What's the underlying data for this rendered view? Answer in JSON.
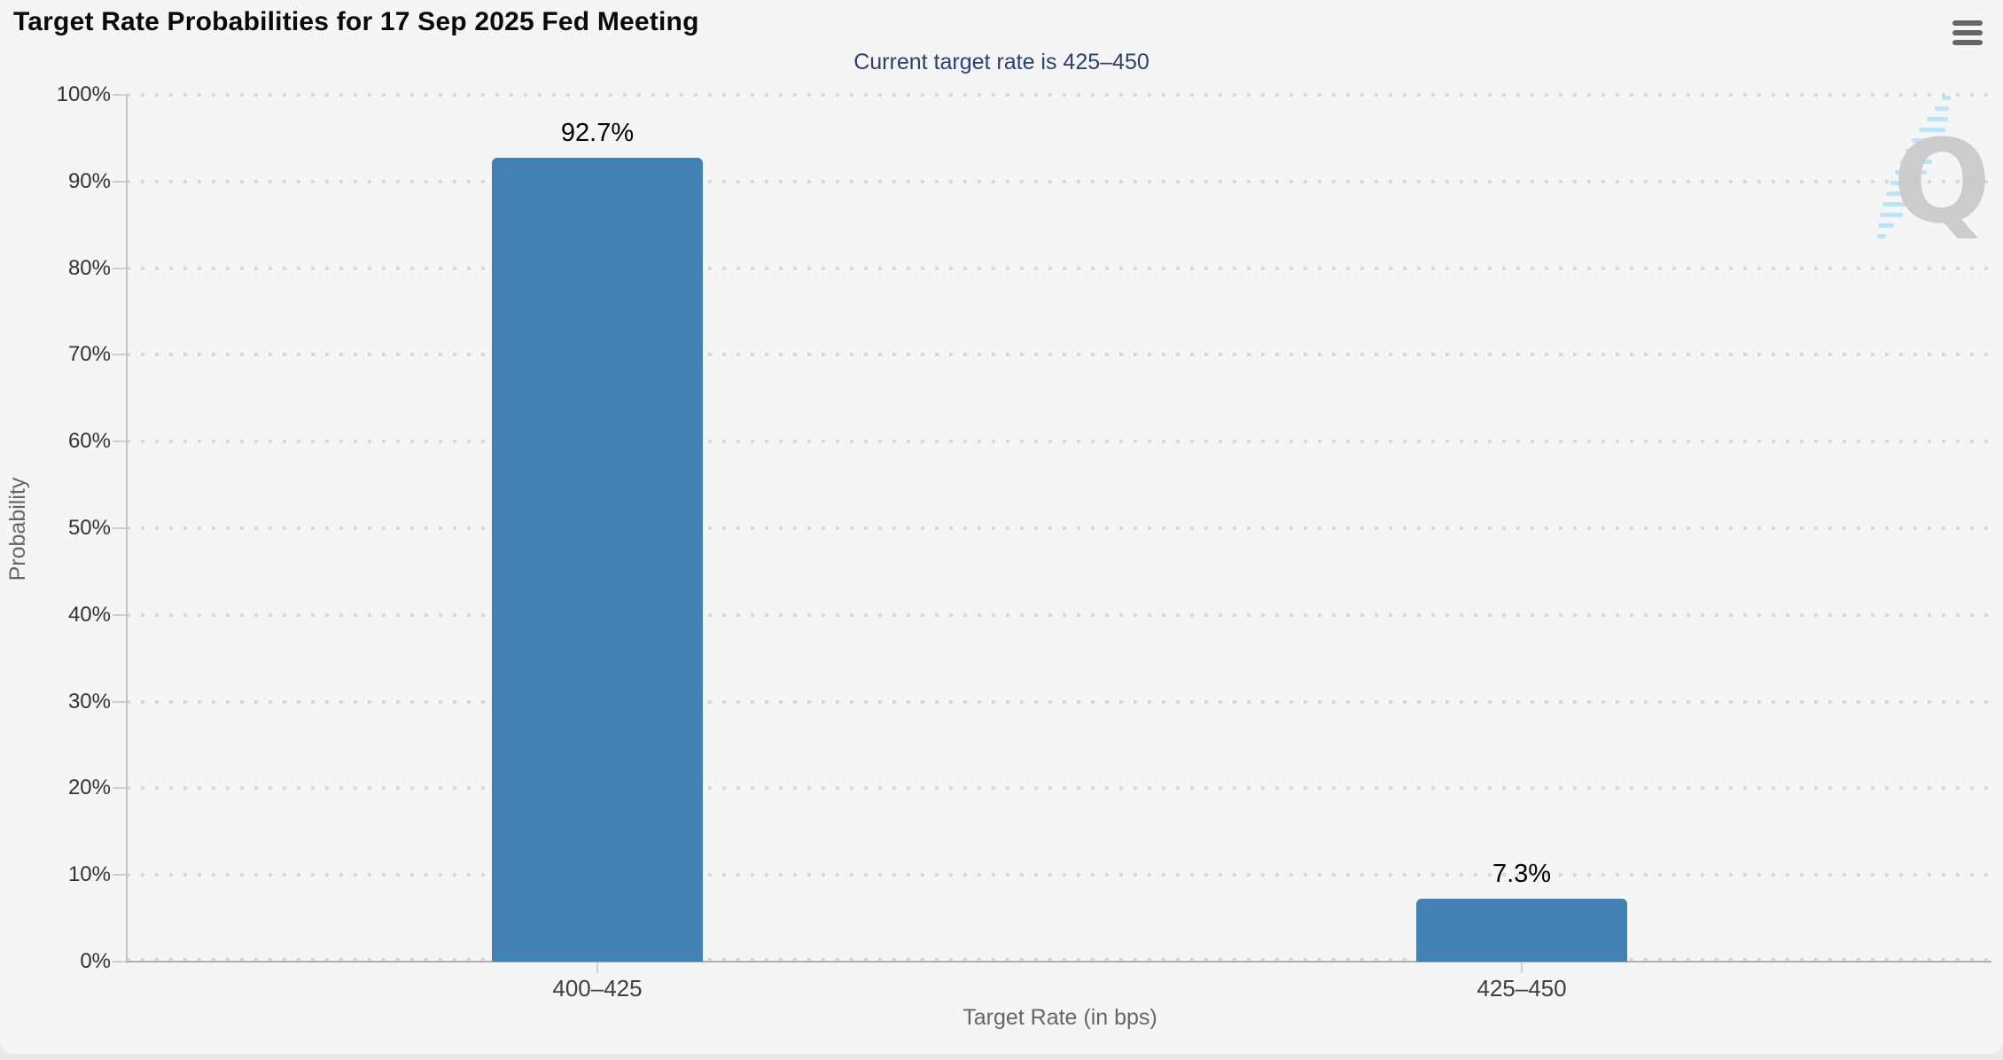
{
  "header": {
    "title": "Target Rate Probabilities for 17 Sep 2025 Fed Meeting",
    "menu_icon": "hamburger-menu-icon"
  },
  "watermark": {
    "letter": "Q"
  },
  "colors": {
    "bar": "#4380b4",
    "subtitle_text": "#2b4170",
    "background": "#f5f5f6",
    "grid_dot": "#d9d9d9",
    "x_axis_line": "#b0b0b0",
    "y_axis_line": "#c4c4c4",
    "tick_label": "#333333",
    "axis_title": "#666666",
    "menu_icon": "#666666",
    "watermark_q": "#c5c5c5",
    "watermark_dash": "#b7e2f4"
  },
  "chart_data": {
    "type": "bar",
    "title": "Target Rate Probabilities for 17 Sep 2025 Fed Meeting",
    "subtitle": "Current target rate is 425–450",
    "categories": [
      "400–425",
      "425–450"
    ],
    "values": [
      92.7,
      7.3
    ],
    "bar_labels": [
      "92.7%",
      "7.3%"
    ],
    "xlabel": "Target Rate (in bps)",
    "ylabel": "Probability",
    "ylim": [
      0,
      100
    ],
    "ytick_step": 10,
    "ytick_labels": [
      "0%",
      "10%",
      "20%",
      "30%",
      "40%",
      "50%",
      "60%",
      "70%",
      "80%",
      "90%",
      "100%"
    ],
    "grid": "dotted horizontal",
    "legend": "none",
    "bar_color": "#4380b4"
  }
}
